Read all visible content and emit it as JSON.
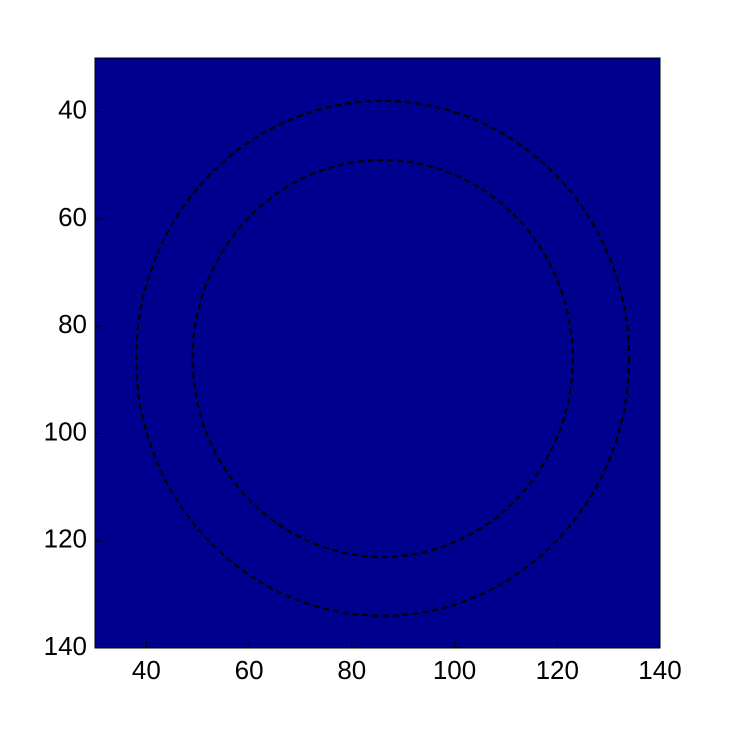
{
  "chart_data": {
    "type": "ring_heatmap",
    "xlim": [
      30,
      140
    ],
    "ylim": [
      30,
      140
    ],
    "y_reversed": true,
    "xticks": [
      40,
      60,
      80,
      100,
      120,
      140
    ],
    "yticks": [
      40,
      60,
      80,
      100,
      120,
      140
    ],
    "background_color": "#00008f",
    "ring": {
      "cx": 86,
      "cy": 86,
      "inner_radius": 37,
      "outer_radius": 48
    },
    "contours": [
      {
        "cx": 86,
        "cy": 86,
        "r": 48
      },
      {
        "cx": 86,
        "cy": 86,
        "r": 37
      }
    ]
  }
}
